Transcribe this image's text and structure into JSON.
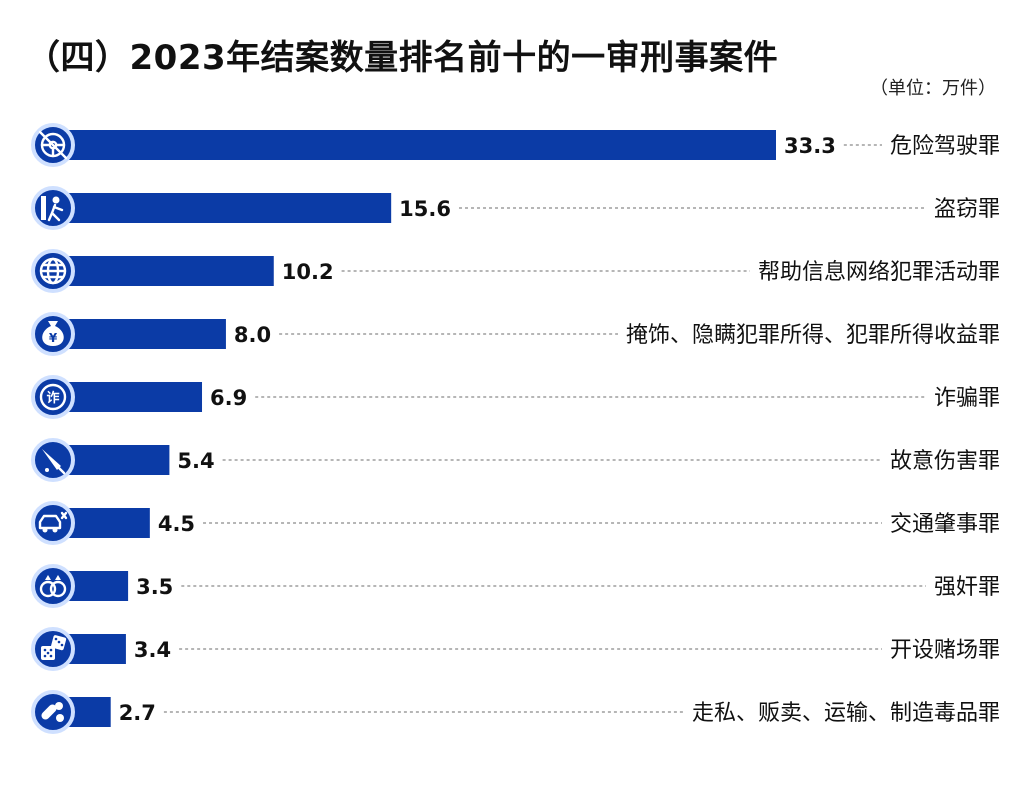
{
  "chart_data": {
    "type": "bar",
    "orientation": "horizontal",
    "title": "（四）2023年结案数量排名前十的一审刑事案件",
    "unit": "（单位：万件）",
    "categories": [
      "危险驾驶罪",
      "盗窃罪",
      "帮助信息网络犯罪活动罪",
      "掩饰、隐瞒犯罪所得、犯罪所得收益罪",
      "诈骗罪",
      "故意伤害罪",
      "交通肇事罪",
      "强奸罪",
      "开设赌场罪",
      "走私、贩卖、运输、制造毒品罪"
    ],
    "values": [
      33.3,
      15.6,
      10.2,
      8.0,
      6.9,
      5.4,
      4.5,
      3.5,
      3.4,
      2.7
    ],
    "value_labels": [
      "33.3",
      "15.6",
      "10.2",
      "8.0",
      "6.9",
      "5.4",
      "4.5",
      "3.5",
      "3.4",
      "2.7"
    ],
    "icons": [
      "steering-wheel-icon",
      "thief-icon",
      "globe-icon",
      "money-bag-icon",
      "fraud-badge-icon",
      "knife-icon",
      "car-crash-icon",
      "rings-icon",
      "dice-icon",
      "pills-icon"
    ],
    "icon_texts": [
      "",
      "",
      "",
      "¥",
      "诈",
      "",
      "",
      "",
      "",
      ""
    ],
    "bar_color": "#0b3ba6",
    "grid": false,
    "legend": "none",
    "xlim": [
      0,
      33.3
    ]
  }
}
